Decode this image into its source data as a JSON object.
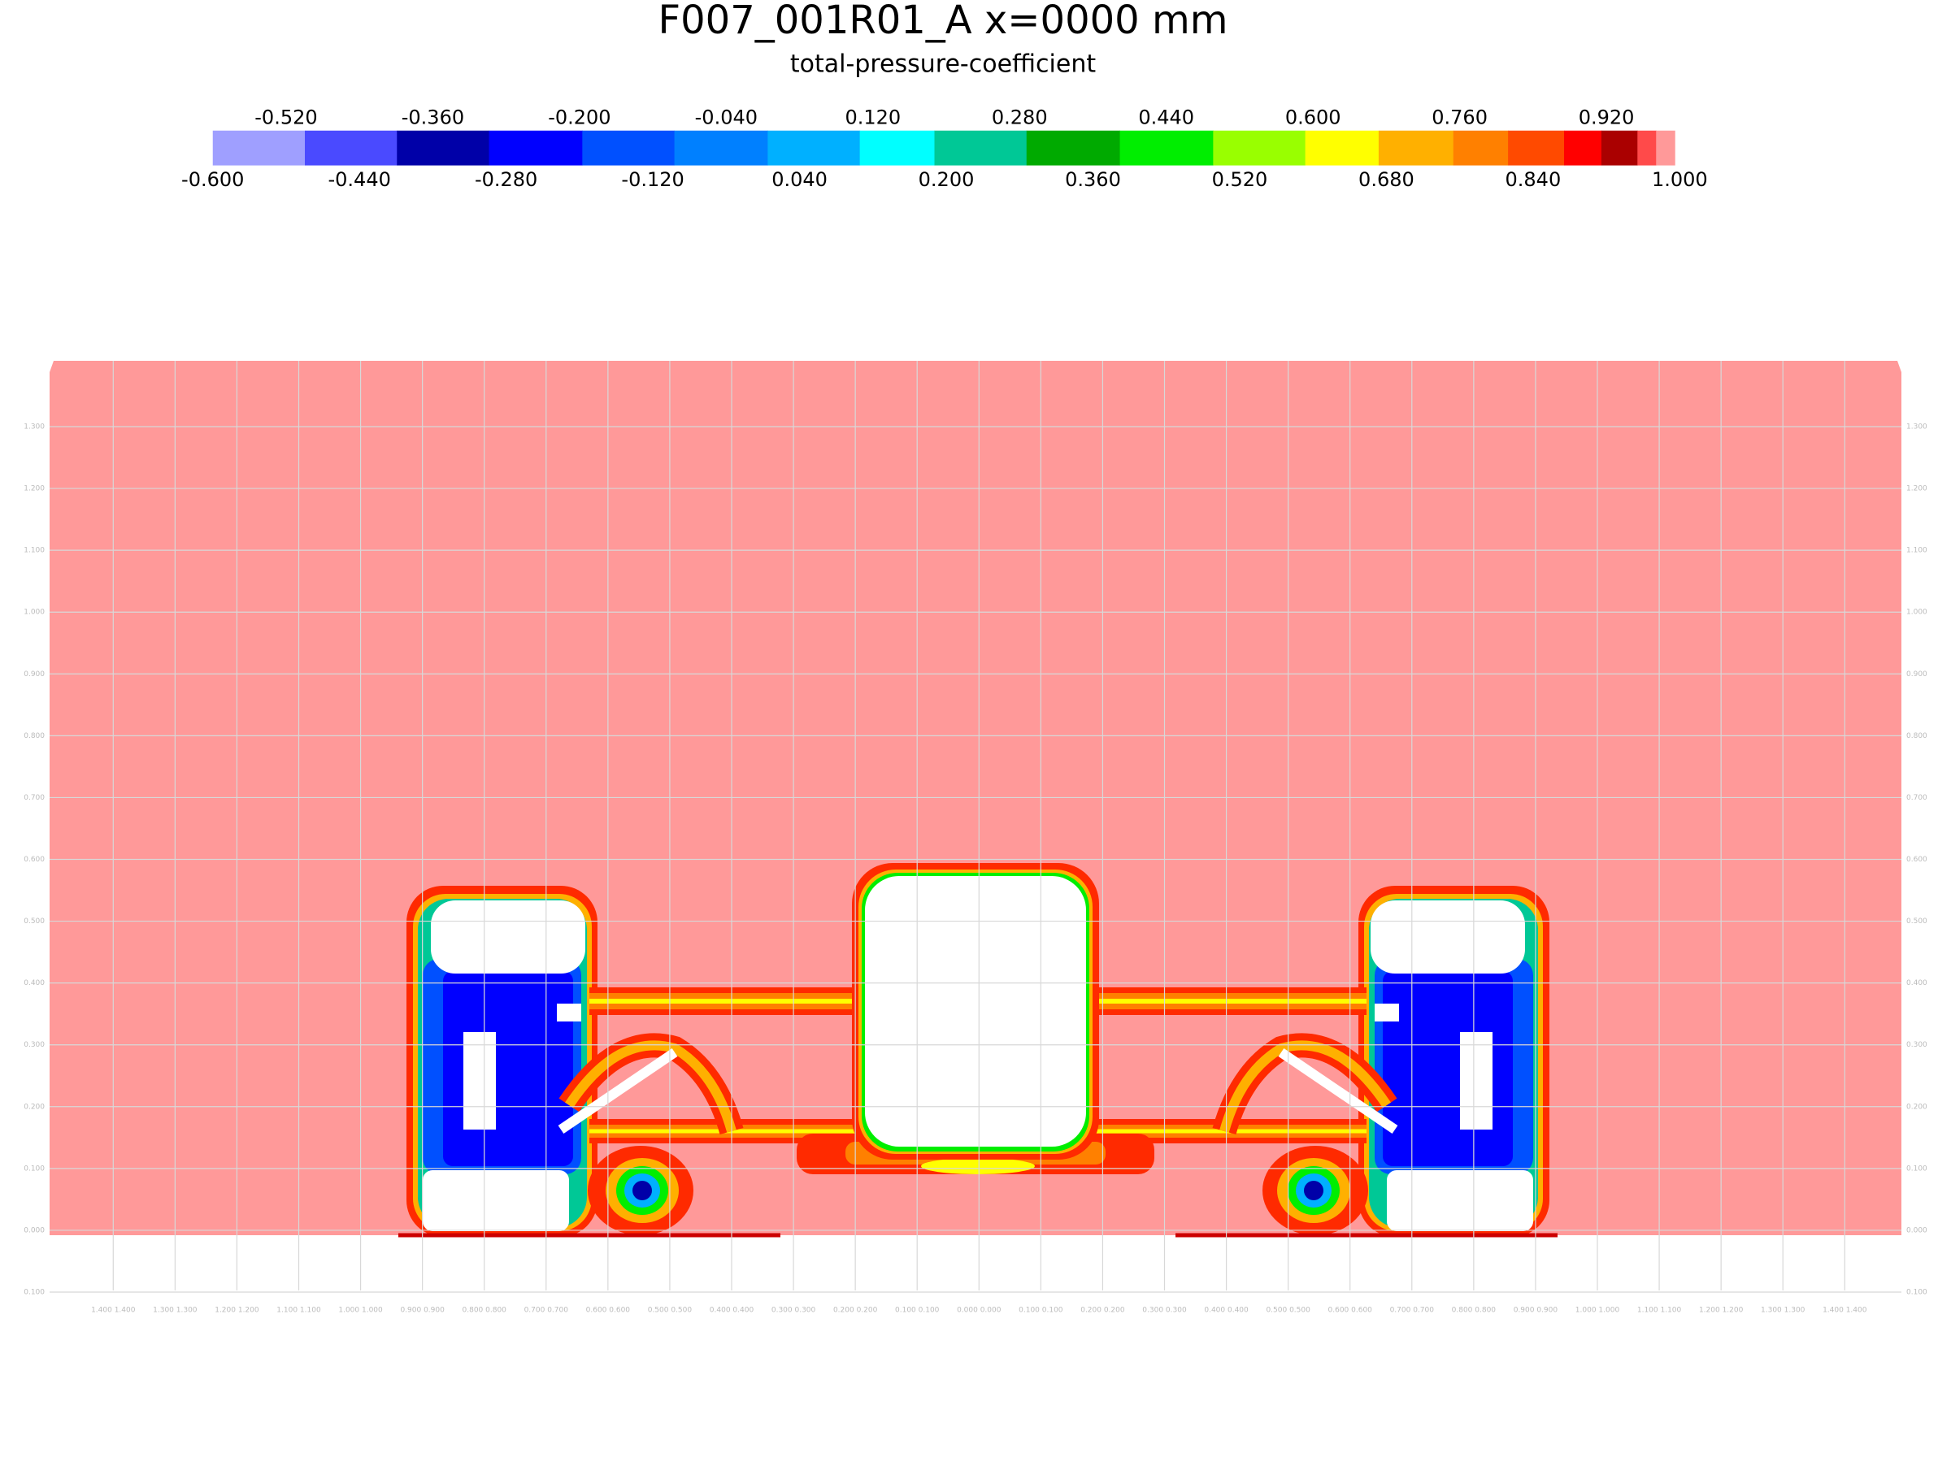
{
  "title": "F007_001R01_A x=0000 mm",
  "subtitle": "total-pressure-coefficient",
  "colorbar": {
    "top_labels": [
      "-0.520",
      "-0.360",
      "-0.200",
      "-0.040",
      "0.120",
      "0.280",
      "0.440",
      "0.600",
      "0.760",
      "0.920"
    ],
    "bottom_labels": [
      "-0.600",
      "-0.440",
      "-0.280",
      "-0.120",
      "0.040",
      "0.200",
      "0.360",
      "0.520",
      "0.680",
      "0.840",
      "1.000"
    ],
    "colors": [
      "#9f9fff",
      "#4a4aff",
      "#0000a8",
      "#0000ff",
      "#0050ff",
      "#0080ff",
      "#00b0ff",
      "#00ffff",
      "#00c896",
      "#00aa00",
      "#00ee00",
      "#99ff00",
      "#ffff00",
      "#ffb000",
      "#ff8000",
      "#ff4a00",
      "#ff0000",
      "#aa0000",
      "#ff4a4a",
      "#ff9999"
    ]
  },
  "axes": {
    "y_labels": [
      "1.300",
      "1.200",
      "1.100",
      "1.000",
      "0.900",
      "0.800",
      "0.700",
      "0.600",
      "0.500",
      "0.400",
      "0.300",
      "0.200",
      "0.100",
      "0.000",
      "0.100"
    ],
    "x_labels": [
      "1.400 1.400",
      "1.300 1.300",
      "1.200 1.200",
      "1.100 1.100",
      "1.000 1.000",
      "0.900 0.900",
      "0.800 0.800",
      "0.700 0.700",
      "0.600 0.600",
      "0.500 0.500",
      "0.400 0.400",
      "0.300 0.300",
      "0.200 0.200",
      "0.100 0.100",
      "0.000 0.000",
      "0.100 0.100",
      "0.200 0.200",
      "0.300 0.300",
      "0.400 0.400",
      "0.500 0.500",
      "0.600 0.600",
      "0.700 0.700",
      "0.800 0.800",
      "0.900 0.900",
      "1.000 1.000",
      "1.100 1.100",
      "1.200 1.200",
      "1.300 1.300",
      "1.400 1.400"
    ]
  }
}
